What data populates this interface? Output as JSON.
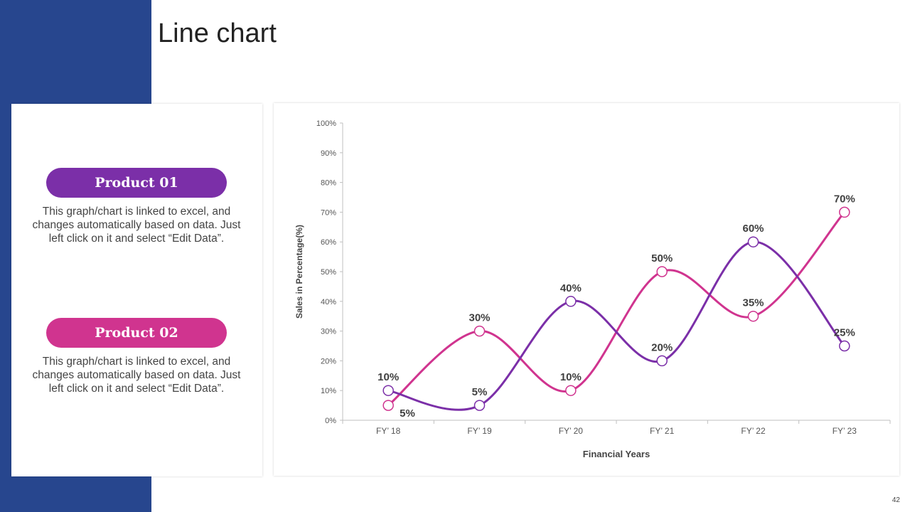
{
  "slide": {
    "title": "Line chart",
    "page_number": "42",
    "products": [
      {
        "label": "Product 01",
        "description": "This graph/chart is linked to excel, and changes automatically based on data. Just left click on it and select “Edit Data”."
      },
      {
        "label": "Product 02",
        "description": "This graph/chart is linked to excel, and changes automatically based on data. Just left click on it and select “Edit Data”."
      }
    ]
  },
  "colors": {
    "band": "#27468e",
    "product_01": "#7b2fa8",
    "product_02": "#d0348f"
  },
  "chart_data": {
    "type": "line",
    "smooth": true,
    "categories": [
      "FY’ 18",
      "FY’ 19",
      "FY’ 20",
      "FY’ 21",
      "FY’ 22",
      "FY’ 23"
    ],
    "series": [
      {
        "name": "Product 01",
        "values": [
          10,
          5,
          40,
          20,
          60,
          25
        ],
        "labels": [
          "10%",
          "5%",
          "40%",
          "20%",
          "60%",
          "25%"
        ],
        "label_side": [
          "above",
          "above",
          "above",
          "above",
          "above",
          "above"
        ]
      },
      {
        "name": "Product 02",
        "values": [
          5,
          30,
          10,
          50,
          35,
          70
        ],
        "labels": [
          "5%",
          "30%",
          "10%",
          "50%",
          "35%",
          "70%"
        ],
        "label_side": [
          "below-right",
          "above",
          "above",
          "above",
          "above",
          "above"
        ]
      }
    ],
    "xlabel": "Financial Years",
    "ylabel": "Sales in Percentage(%)",
    "ylim": [
      0,
      100
    ],
    "ytick_step": 10,
    "yticks": [
      "0%",
      "10%",
      "20%",
      "30%",
      "40%",
      "50%",
      "60%",
      "70%",
      "80%",
      "90%",
      "100%"
    ],
    "grid": false,
    "legend": "none"
  }
}
